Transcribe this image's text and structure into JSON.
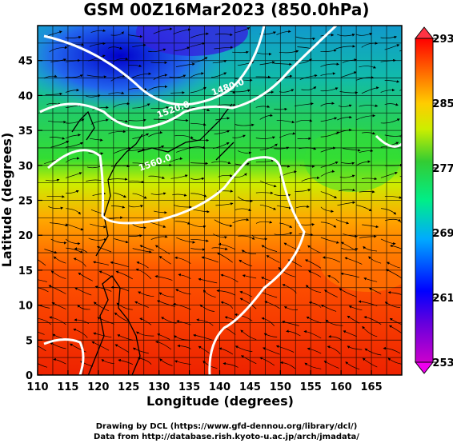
{
  "title": "GSM 00Z16Mar2023 (850.0hPa)",
  "x_axis": {
    "label": "Longitude (degrees)",
    "range": [
      110,
      170
    ],
    "ticks": [
      110,
      115,
      120,
      125,
      130,
      135,
      140,
      145,
      150,
      155,
      160,
      165
    ]
  },
  "y_axis": {
    "label": "Latitude (degrees)",
    "range": [
      0,
      50
    ],
    "ticks": [
      0,
      5,
      10,
      15,
      20,
      25,
      30,
      35,
      40,
      45
    ]
  },
  "colorbar": {
    "ticks": [
      253,
      261,
      269,
      277,
      285,
      293
    ],
    "range": [
      253,
      293
    ],
    "colors": [
      "#cc00cc",
      "#0000ff",
      "#00aaff",
      "#00ff80",
      "#33cc33",
      "#ffff00",
      "#ff9900",
      "#ff0000"
    ]
  },
  "contour_labels": [
    {
      "text": "1480.0",
      "lon": 141.5,
      "lat": 40.8
    },
    {
      "text": "1520.0",
      "lon": 132.5,
      "lat": 37.6
    },
    {
      "text": "1560.0",
      "lon": 129.5,
      "lat": 30.0
    }
  ],
  "credits": [
    "Drawing by DCL (https://www.gfd-dennou.org/library/dcl/)",
    "Data from http://database.rish.kyoto-u.ac.jp/arch/jmadata/"
  ]
}
